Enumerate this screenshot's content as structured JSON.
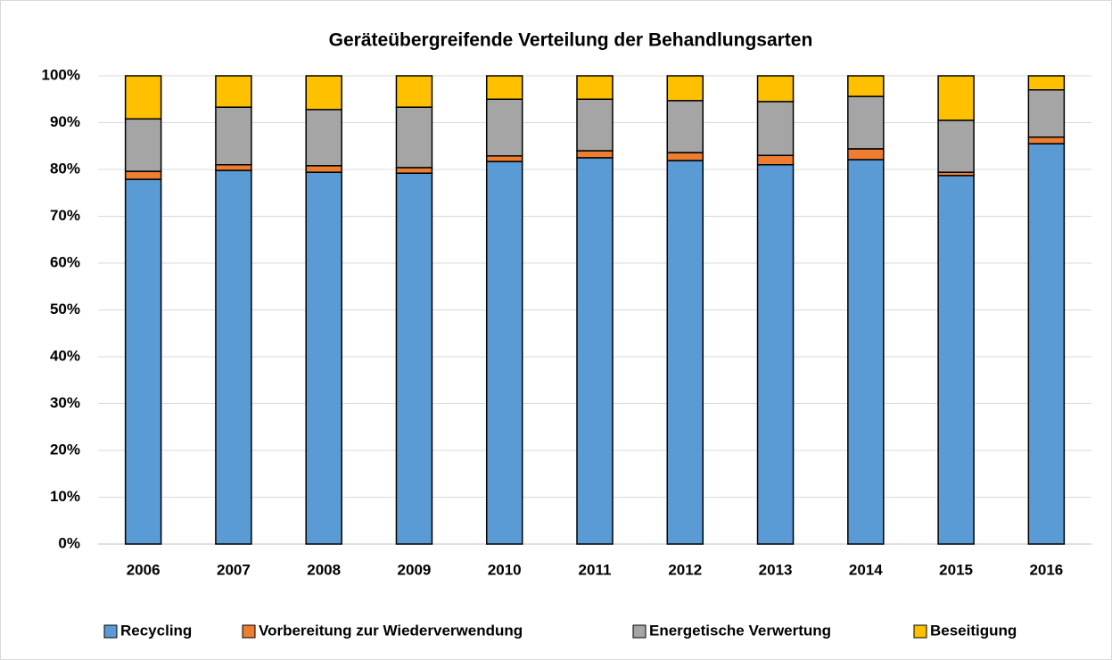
{
  "chart_data": {
    "type": "stacked_bar",
    "title": "Geräteübergreifende Verteilung der Behandlungsarten",
    "categories": [
      "2006",
      "2007",
      "2008",
      "2009",
      "2010",
      "2011",
      "2012",
      "2013",
      "2014",
      "2015",
      "2016"
    ],
    "series": [
      {
        "name": "Recycling",
        "color": "#5b9bd5",
        "values": [
          77.9,
          79.8,
          79.4,
          79.2,
          81.7,
          82.5,
          81.9,
          81.0,
          82.1,
          78.7,
          85.5
        ]
      },
      {
        "name": "Vorbereitung zur Wiederverwendung",
        "color": "#ed7d31",
        "values": [
          1.7,
          1.2,
          1.4,
          1.2,
          1.2,
          1.5,
          1.7,
          2.0,
          2.3,
          0.7,
          1.4
        ]
      },
      {
        "name": "Energetische Verwertung",
        "color": "#a5a5a5",
        "values": [
          11.2,
          12.3,
          12.0,
          12.9,
          12.1,
          11.0,
          11.1,
          11.5,
          11.2,
          11.1,
          10.1
        ]
      },
      {
        "name": "Beseitigung",
        "color": "#ffc000",
        "values": [
          9.2,
          6.7,
          7.2,
          6.7,
          5.0,
          5.0,
          5.3,
          5.5,
          4.4,
          9.5,
          3.0
        ]
      }
    ],
    "ylim": [
      0,
      100
    ],
    "yticks": [
      {
        "value": 0,
        "label": "0%"
      },
      {
        "value": 10,
        "label": "10%"
      },
      {
        "value": 20,
        "label": "20%"
      },
      {
        "value": 30,
        "label": "30%"
      },
      {
        "value": 40,
        "label": "40%"
      },
      {
        "value": 50,
        "label": "50%"
      },
      {
        "value": 60,
        "label": "60%"
      },
      {
        "value": 70,
        "label": "70%"
      },
      {
        "value": 80,
        "label": "80%"
      },
      {
        "value": 90,
        "label": "90%"
      },
      {
        "value": 100,
        "label": "100%"
      }
    ],
    "grid": true,
    "legend": "bottom"
  }
}
